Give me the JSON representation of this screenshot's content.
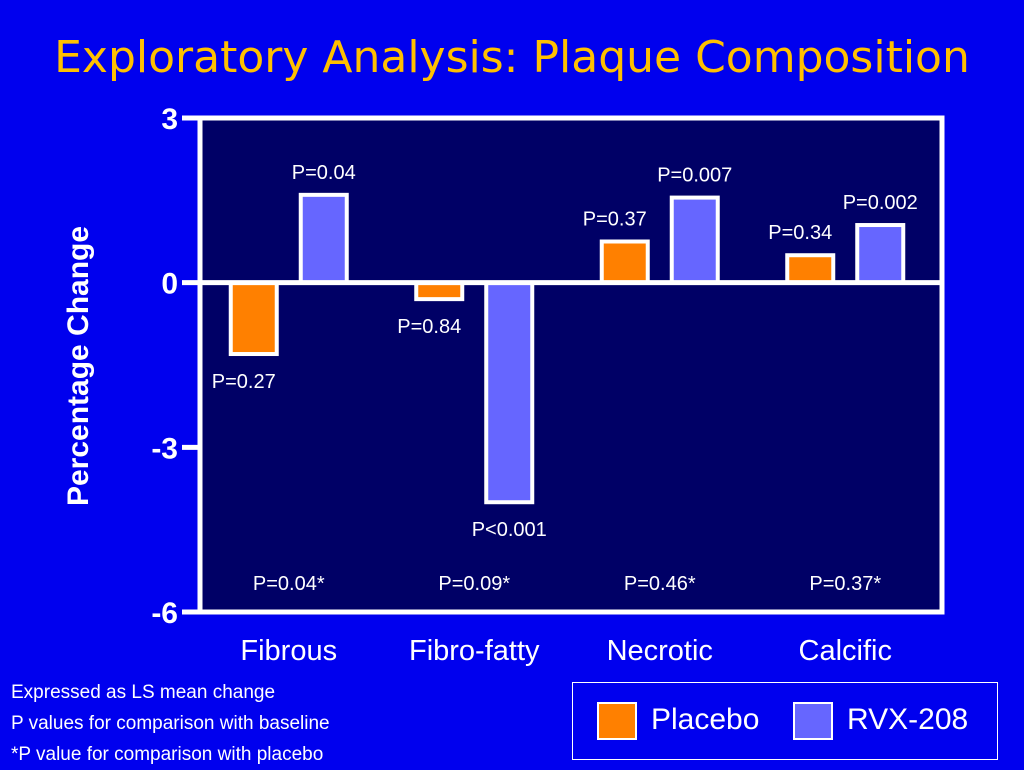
{
  "title": "Exploratory Analysis: Plaque Composition",
  "colors": {
    "background": "#0000ee",
    "plot_area": "#000066",
    "title": "#ffc000",
    "placebo": "#ff8000",
    "rvx208": "#6666ff",
    "text": "#ffffff"
  },
  "chart_data": {
    "type": "bar",
    "title": "",
    "xlabel": "",
    "ylabel": "Percentage Change",
    "ylim": [
      -6,
      3
    ],
    "yticks": [
      3,
      0,
      -3,
      -6
    ],
    "categories": [
      "Fibrous",
      "Fibro-fatty",
      "Necrotic",
      "Calcific"
    ],
    "series": [
      {
        "name": "Placebo",
        "values": [
          -1.3,
          -0.3,
          0.75,
          0.5
        ],
        "labels": [
          "P=0.27",
          "P=0.84",
          "P=0.37",
          "P=0.34"
        ]
      },
      {
        "name": "RVX-208",
        "values": [
          1.6,
          -4.0,
          1.55,
          1.05
        ],
        "labels": [
          "P=0.04",
          "P<0.001",
          "P=0.007",
          "P=0.002"
        ]
      }
    ],
    "comparison_labels": [
      "P=0.04*",
      "P=0.09*",
      "P=0.46*",
      "P=0.37*"
    ],
    "grid": false,
    "legend": "bottom-right"
  },
  "notes": [
    "Expressed as LS mean change",
    "P values for comparison with baseline",
    "*P value for comparison with placebo"
  ]
}
